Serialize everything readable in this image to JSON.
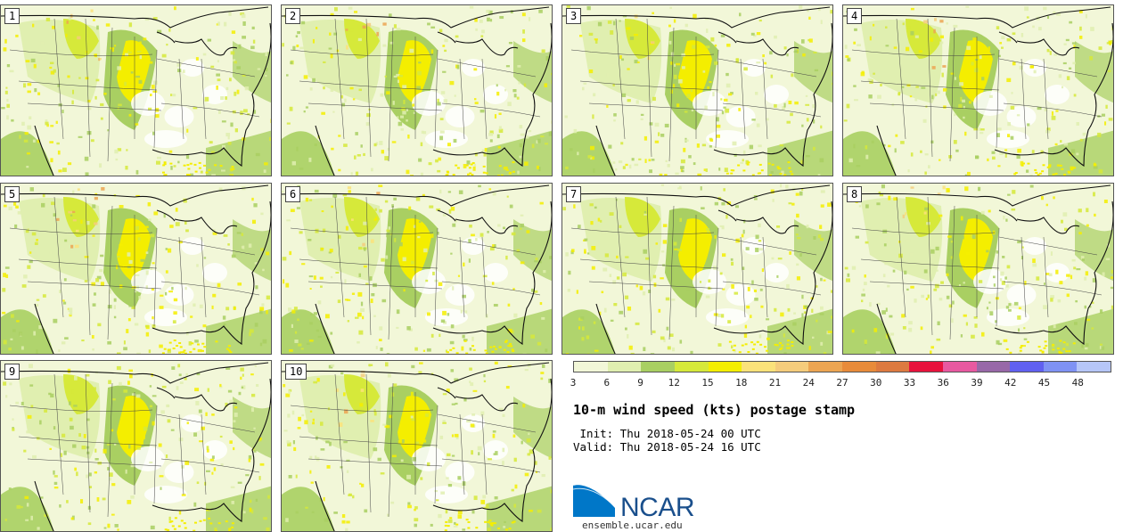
{
  "panels": [
    "1",
    "2",
    "3",
    "4",
    "5",
    "6",
    "7",
    "8",
    "9",
    "10"
  ],
  "colorbar": {
    "ticks": [
      "3",
      "6",
      "9",
      "12",
      "15",
      "18",
      "21",
      "24",
      "27",
      "30",
      "33",
      "36",
      "39",
      "42",
      "45",
      "48"
    ],
    "colors": [
      "#f2f7d8",
      "#e0efb0",
      "#a9cf62",
      "#d6e93a",
      "#f4ee00",
      "#fbe27a",
      "#f5cc7c",
      "#eca552",
      "#e88b3a",
      "#dd7a40",
      "#e8123c",
      "#e859a0",
      "#9868a8",
      "#6060f0",
      "#7f92f4",
      "#b6c6f8"
    ]
  },
  "title": "10-m wind speed (kts) postage stamp",
  "init": " Init: Thu 2018-05-24 00 UTC",
  "valid": "Valid: Thu 2018-05-24 16 UTC",
  "logo": {
    "text": "NCAR",
    "color": "#1a4f8c",
    "swoosh": "#0077c8"
  },
  "website": "ensemble.ucar.edu"
}
